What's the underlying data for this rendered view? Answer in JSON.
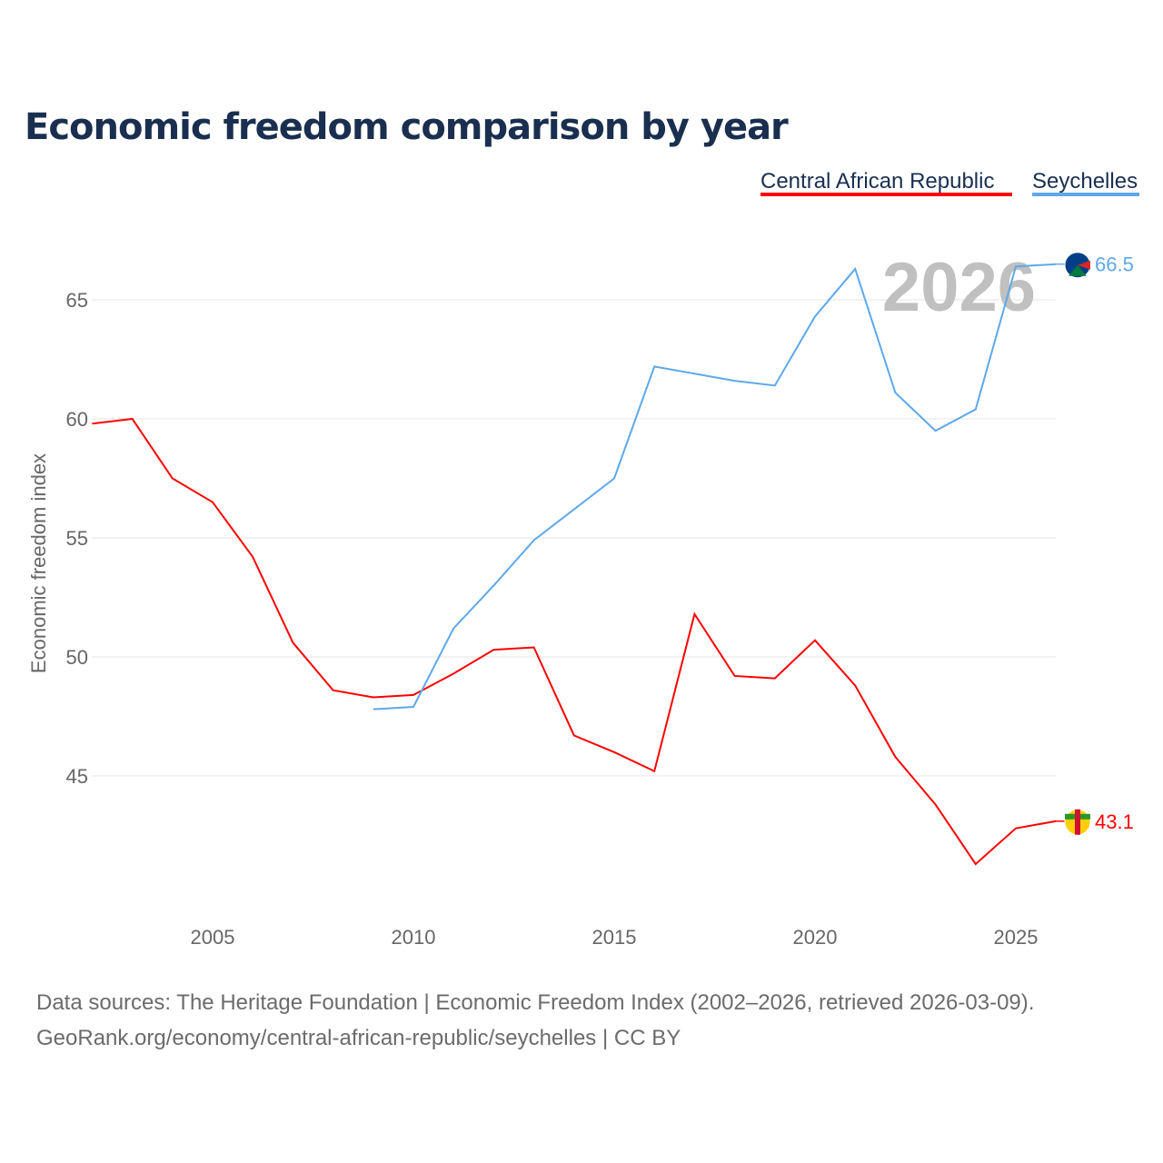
{
  "chart_data": {
    "type": "line",
    "title": "Economic freedom comparison by year",
    "xlabel": "",
    "ylabel": "Economic freedom index",
    "xlim": [
      2002,
      2026
    ],
    "ylim": [
      40,
      68
    ],
    "x_ticks": [
      2005,
      2010,
      2015,
      2020,
      2025
    ],
    "y_ticks": [
      45,
      50,
      55,
      60,
      65
    ],
    "grid": true,
    "legend_position": "top-right",
    "year_overlay": "2026",
    "series": [
      {
        "name": "Central African Republic",
        "color": "#ff0000",
        "end_label": "43.1",
        "x": [
          2002,
          2003,
          2004,
          2005,
          2006,
          2007,
          2008,
          2009,
          2010,
          2011,
          2012,
          2013,
          2014,
          2015,
          2016,
          2017,
          2018,
          2019,
          2020,
          2021,
          2022,
          2023,
          2024,
          2025,
          2026
        ],
        "values": [
          59.8,
          60.0,
          57.5,
          56.5,
          54.2,
          50.6,
          48.6,
          48.3,
          48.4,
          49.3,
          50.3,
          50.4,
          46.7,
          46.0,
          45.2,
          51.8,
          49.2,
          49.1,
          50.7,
          48.8,
          45.8,
          43.8,
          41.3,
          42.8,
          43.1
        ]
      },
      {
        "name": "Seychelles",
        "color": "#5ea8ea",
        "end_label": "66.5",
        "x": [
          2009,
          2010,
          2011,
          2012,
          2013,
          2014,
          2015,
          2016,
          2017,
          2018,
          2019,
          2020,
          2021,
          2022,
          2023,
          2024,
          2025,
          2026
        ],
        "values": [
          47.8,
          47.9,
          51.2,
          53.0,
          54.9,
          56.2,
          57.5,
          62.2,
          61.9,
          61.6,
          61.4,
          64.3,
          66.3,
          61.1,
          59.5,
          60.4,
          66.4,
          66.5
        ]
      }
    ]
  },
  "source_line1": "Data sources: The Heritage Foundation | Economic Freedom Index (2002–2026, retrieved 2026-03-09).",
  "source_line2": "GeoRank.org/economy/central-african-republic/seychelles | CC BY"
}
